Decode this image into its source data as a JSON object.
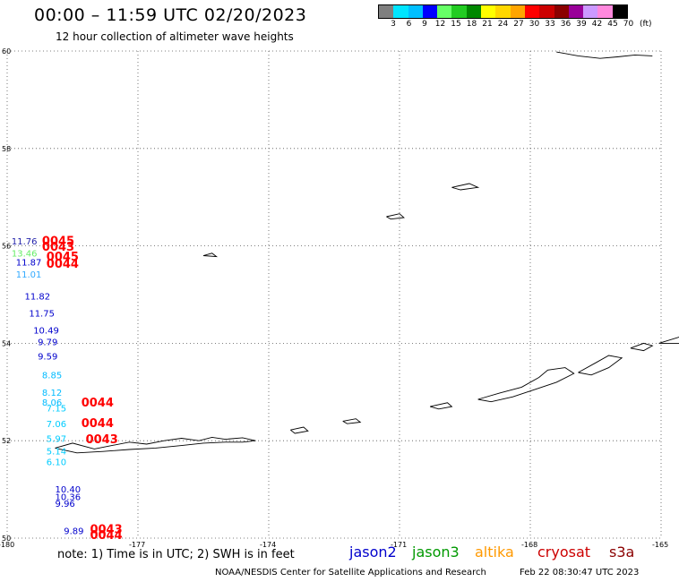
{
  "header": {
    "title": "00:00 – 11:59 UTC 02/20/2023",
    "subtitle": "12 hour collection of altimeter wave heights"
  },
  "color_scale": {
    "colors": [
      "#7f7f7f",
      "#00e5ff",
      "#00bfff",
      "#0000ff",
      "#66ff66",
      "#22cc22",
      "#008800",
      "#ffff00",
      "#ffd700",
      "#ffa500",
      "#ff0000",
      "#cc0000",
      "#8b0000",
      "#990099",
      "#cc99ff",
      "#ff88dd",
      "#000000"
    ],
    "labels": [
      "3",
      "6",
      "9",
      "12",
      "15",
      "18",
      "21",
      "24",
      "27",
      "30",
      "33",
      "36",
      "39",
      "42",
      "45",
      "70"
    ],
    "unit": "(ft)"
  },
  "map": {
    "lat_range": [
      50,
      60
    ],
    "lon_range": [
      -180,
      -165
    ],
    "lat_labels": [
      "60",
      "58",
      "56",
      "54",
      "52",
      "50"
    ],
    "lon_labels": [
      "-180",
      "-177",
      "-174",
      "-171",
      "-168",
      "-165"
    ],
    "observations": [
      {
        "text": "11.76",
        "lon": -179.9,
        "lat": 56.03,
        "color": "#2222aa"
      },
      {
        "text": "13.46",
        "lon": -179.9,
        "lat": 55.78,
        "color": "#66ee66"
      },
      {
        "text": "11.87",
        "lon": -179.8,
        "lat": 55.6,
        "color": "#0000cc"
      },
      {
        "text": "11.01",
        "lon": -179.8,
        "lat": 55.35,
        "color": "#33aaff"
      },
      {
        "text": "11.82",
        "lon": -179.6,
        "lat": 54.9,
        "color": "#0000cc"
      },
      {
        "text": "11.75",
        "lon": -179.5,
        "lat": 54.55,
        "color": "#0000cc"
      },
      {
        "text": "10.49",
        "lon": -179.4,
        "lat": 54.2,
        "color": "#0000cc"
      },
      {
        "text": "9.79",
        "lon": -179.3,
        "lat": 53.96,
        "color": "#0000cc"
      },
      {
        "text": "9.59",
        "lon": -179.3,
        "lat": 53.67,
        "color": "#0000cc"
      },
      {
        "text": "8.85",
        "lon": -179.2,
        "lat": 53.28,
        "color": "#00bbff"
      },
      {
        "text": "8.12",
        "lon": -179.2,
        "lat": 52.92,
        "color": "#00bbff"
      },
      {
        "text": "8.06",
        "lon": -179.2,
        "lat": 52.72,
        "color": "#00bbff"
      },
      {
        "text": "7.15",
        "lon": -179.1,
        "lat": 52.6,
        "color": "#00ccff"
      },
      {
        "text": "7.06",
        "lon": -179.1,
        "lat": 52.28,
        "color": "#00ccff"
      },
      {
        "text": "5.97",
        "lon": -179.1,
        "lat": 51.98,
        "color": "#00ccff"
      },
      {
        "text": "5.14",
        "lon": -179.1,
        "lat": 51.72,
        "color": "#00ccff"
      },
      {
        "text": "6.10",
        "lon": -179.1,
        "lat": 51.5,
        "color": "#00ccff"
      },
      {
        "text": "10.40",
        "lon": -178.9,
        "lat": 50.94,
        "color": "#0000cc"
      },
      {
        "text": "10.36",
        "lon": -178.9,
        "lat": 50.78,
        "color": "#0000cc"
      },
      {
        "text": "9.96",
        "lon": -178.9,
        "lat": 50.64,
        "color": "#0000cc"
      },
      {
        "text": "9.89",
        "lon": -178.7,
        "lat": 50.08,
        "color": "#0000cc"
      }
    ],
    "cycle_labels": [
      {
        "text": "0045",
        "lon": -179.2,
        "lat": 56.02
      },
      {
        "text": "0043",
        "lon": -179.2,
        "lat": 55.9
      },
      {
        "text": "0045",
        "lon": -179.1,
        "lat": 55.7
      },
      {
        "text": "0044",
        "lon": -179.1,
        "lat": 55.55
      },
      {
        "text": "0044",
        "lon": -178.3,
        "lat": 52.7
      },
      {
        "text": "0044",
        "lon": -178.3,
        "lat": 52.28
      },
      {
        "text": "0043",
        "lon": -178.2,
        "lat": 51.95
      },
      {
        "text": "0043",
        "lon": -178.1,
        "lat": 50.1
      },
      {
        "text": "0044",
        "lon": -178.1,
        "lat": 49.98
      }
    ]
  },
  "footer": {
    "note": "note: 1) Time is in UTC; 2) SWH is in feet",
    "legend": [
      {
        "name": "jason2",
        "color": "#0000cc"
      },
      {
        "name": "jason3",
        "color": "#009900"
      },
      {
        "name": "altika",
        "color": "#ff9900"
      },
      {
        "name": "cryosat",
        "color": "#cc0000"
      },
      {
        "name": "s3a",
        "color": "#8b0000"
      }
    ],
    "credit": "NOAA/NESDIS Center for Satellite Applications and Research",
    "timestamp": "Feb 22 08:30:47 UTC 2023"
  }
}
